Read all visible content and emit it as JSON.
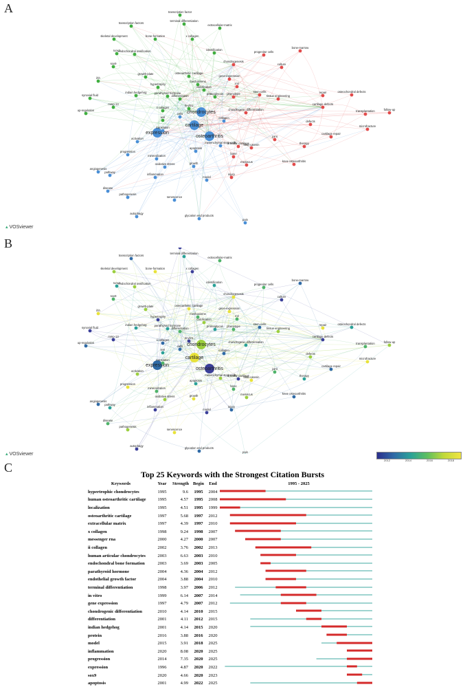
{
  "panels": {
    "a": "A",
    "b": "B",
    "c": "C"
  },
  "vosviewer": "VOSviewer",
  "colorbar": {
    "ticks": [
      "2012",
      "2014",
      "2016",
      "2018"
    ]
  },
  "network_labels": [
    "transcription factor",
    "transcription factors",
    "terminal differentiation",
    "extracellular-matrix",
    "skeletal development",
    "bone-formation",
    "x collagen",
    "bone-marrow",
    "identification",
    "progenitor cells",
    "endochondral ossification",
    "chondrogenesis",
    "culture",
    "stem-cells",
    "indian hedgehog",
    "differentiation",
    "chondrocytes",
    "cartilage",
    "osteoarthritis",
    "expression",
    "apoptosis",
    "bone",
    "activation",
    "progression",
    "inflammation",
    "angiogenesis",
    "pathway",
    "disease",
    "pathogenesis",
    "senescence",
    "autophagy",
    "glycation end products",
    "pain",
    "mri",
    "tissue engineering",
    "repair",
    "cartilage defects",
    "cartilage repair",
    "osteochondral defects",
    "transplantation",
    "follow-up",
    "microfracture",
    "articular cartilage",
    "knee osteoarthritis",
    "therapy",
    "joint",
    "meniscus",
    "gene-expression",
    "synovial fluid",
    "up-regulation",
    "runx2",
    "sox9",
    "growth-plate",
    "ihh",
    "mmp-13",
    "ii collagen",
    "parathyroid hormone",
    "mineralization",
    "oxidative stress",
    "growth",
    "model",
    "injury",
    "chondrogenic differentiation",
    "mechanisms",
    "defects",
    "beta-catenin",
    "in-vitro",
    "collagen",
    "proteoglycan",
    "phenotype",
    "mesenchymal stem cells",
    "osteoarthritic cartilage",
    "hypertrophy",
    "cells",
    "wnt",
    "translation",
    "calcification",
    "growth-factor-beta"
  ],
  "chart_data": {
    "type": "table",
    "title": "Top 25 Keywords with the Strongest Citation Bursts",
    "columns": [
      "Keywords",
      "Year",
      "Strength",
      "Begin",
      "End",
      "1995 - 2025"
    ],
    "range": [
      1995,
      2025
    ],
    "rows": [
      {
        "keyword": "hypertrophic chondrocytes",
        "year": 1995,
        "strength": "9.6",
        "begin": 1995,
        "end": 2004
      },
      {
        "keyword": "human osteoarthritic cartilage",
        "year": 1995,
        "strength": "4.57",
        "begin": 1995,
        "end": 2008
      },
      {
        "keyword": "localization",
        "year": 1995,
        "strength": "4.51",
        "begin": 1995,
        "end": 1999
      },
      {
        "keyword": "osteoarthritic cartilage",
        "year": 1997,
        "strength": "5.68",
        "begin": 1997,
        "end": 2012
      },
      {
        "keyword": "extracellular matrix",
        "year": 1997,
        "strength": "4.39",
        "begin": 1997,
        "end": 2010
      },
      {
        "keyword": "x collagen",
        "year": 1998,
        "strength": "9.24",
        "begin": 1998,
        "end": 2007
      },
      {
        "keyword": "messenger rna",
        "year": 2000,
        "strength": "4.27",
        "begin": 2000,
        "end": 2007
      },
      {
        "keyword": "ii collagen",
        "year": 2002,
        "strength": "3.76",
        "begin": 2002,
        "end": 2013
      },
      {
        "keyword": "human articular chondrocytes",
        "year": 2003,
        "strength": "6.63",
        "begin": 2003,
        "end": 2010
      },
      {
        "keyword": "endochondral bone formation",
        "year": 2003,
        "strength": "3.69",
        "begin": 2003,
        "end": 2005
      },
      {
        "keyword": "parathyroid hormone",
        "year": 2004,
        "strength": "4.36",
        "begin": 2004,
        "end": 2012
      },
      {
        "keyword": "endothelial growth factor",
        "year": 2004,
        "strength": "3.88",
        "begin": 2004,
        "end": 2010
      },
      {
        "keyword": "terminal differentiation",
        "year": 1998,
        "strength": "3.97",
        "begin": 2006,
        "end": 2012
      },
      {
        "keyword": "in vitro",
        "year": 1999,
        "strength": "6.14",
        "begin": 2007,
        "end": 2014
      },
      {
        "keyword": "gene expression",
        "year": 1997,
        "strength": "4.79",
        "begin": 2007,
        "end": 2012
      },
      {
        "keyword": "chondrogenic differentiation",
        "year": 2010,
        "strength": "4.14",
        "begin": 2010,
        "end": 2015
      },
      {
        "keyword": "differentiation",
        "year": 2001,
        "strength": "4.11",
        "begin": 2012,
        "end": 2015
      },
      {
        "keyword": "indian hedgehog",
        "year": 2001,
        "strength": "4.14",
        "begin": 2015,
        "end": 2020
      },
      {
        "keyword": "protein",
        "year": 2016,
        "strength": "3.88",
        "begin": 2016,
        "end": 2020
      },
      {
        "keyword": "model",
        "year": 2015,
        "strength": "3.91",
        "begin": 2018,
        "end": 2025
      },
      {
        "keyword": "inflammation",
        "year": 2020,
        "strength": "8.08",
        "begin": 2020,
        "end": 2025
      },
      {
        "keyword": "progression",
        "year": 2014,
        "strength": "7.35",
        "begin": 2020,
        "end": 2025
      },
      {
        "keyword": "expression",
        "year": 1996,
        "strength": "4.87",
        "begin": 2020,
        "end": 2022
      },
      {
        "keyword": "sox9",
        "year": 2020,
        "strength": "4.66",
        "begin": 2020,
        "end": 2023
      },
      {
        "keyword": "apoptosis",
        "year": 2001,
        "strength": "4.99",
        "begin": 2022,
        "end": 2025
      }
    ]
  }
}
